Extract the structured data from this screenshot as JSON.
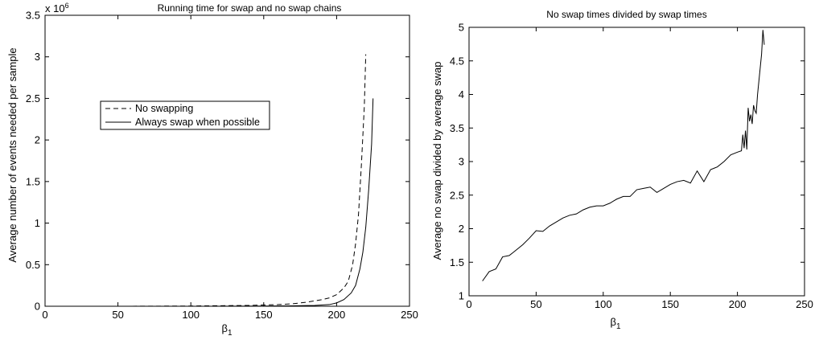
{
  "chart_data": [
    {
      "type": "line",
      "title": "Running time for swap and no swap chains",
      "xlabel_main": "β",
      "xlabel_sub": "1",
      "ylabel": "Average number of events needed per sample",
      "exponent_base": "x 10",
      "exponent_power": "6",
      "xlim": [
        0,
        250
      ],
      "ylim": [
        0,
        3.5
      ],
      "x_ticks": [
        "0",
        "50",
        "100",
        "150",
        "200",
        "250"
      ],
      "y_ticks": [
        "0",
        "0.5",
        "1",
        "1.5",
        "2",
        "2.5",
        "3",
        "3.5"
      ],
      "legend_position": "center-left",
      "series": [
        {
          "name": "No swapping",
          "style": "dashed",
          "color": "#000000",
          "x": [
            10,
            50,
            100,
            140,
            160,
            170,
            180,
            190,
            195,
            200,
            205,
            208,
            211,
            213,
            215,
            217,
            219,
            220
          ],
          "y": [
            0,
            0,
            0.003,
            0.01,
            0.02,
            0.03,
            0.05,
            0.08,
            0.1,
            0.14,
            0.22,
            0.3,
            0.5,
            0.75,
            1.1,
            1.7,
            2.4,
            3.03
          ]
        },
        {
          "name": "Always swap when possible",
          "style": "solid",
          "color": "#000000",
          "x": [
            10,
            50,
            100,
            150,
            170,
            185,
            195,
            200,
            205,
            210,
            213,
            216,
            218,
            220,
            222,
            224,
            225
          ],
          "y": [
            0,
            0,
            0,
            0.002,
            0.005,
            0.01,
            0.02,
            0.04,
            0.08,
            0.16,
            0.25,
            0.45,
            0.65,
            0.95,
            1.4,
            1.95,
            2.5
          ]
        }
      ]
    },
    {
      "type": "line",
      "title": "No swap times divided by swap times",
      "xlabel_main": "β",
      "xlabel_sub": "1",
      "ylabel": "Average no swap divided by average swap",
      "xlim": [
        0,
        250
      ],
      "ylim": [
        1,
        5
      ],
      "x_ticks": [
        "0",
        "50",
        "100",
        "150",
        "200",
        "250"
      ],
      "y_ticks": [
        "1",
        "1.5",
        "2",
        "2.5",
        "3",
        "3.5",
        "4",
        "4.5",
        "5"
      ],
      "series": [
        {
          "style": "solid",
          "color": "#000000",
          "x": [
            10,
            15,
            20,
            25,
            30,
            35,
            40,
            45,
            50,
            55,
            60,
            65,
            70,
            75,
            80,
            85,
            90,
            95,
            100,
            105,
            110,
            115,
            120,
            125,
            130,
            135,
            140,
            145,
            150,
            155,
            160,
            165,
            170,
            175,
            180,
            185,
            190,
            195,
            200,
            203,
            204,
            205,
            206,
            207,
            208,
            209,
            210,
            211,
            212,
            213,
            214,
            215,
            216,
            217,
            218,
            219,
            220
          ],
          "y": [
            1.22,
            1.36,
            1.4,
            1.58,
            1.6,
            1.68,
            1.76,
            1.86,
            1.97,
            1.96,
            2.04,
            2.1,
            2.16,
            2.2,
            2.22,
            2.28,
            2.32,
            2.34,
            2.34,
            2.38,
            2.44,
            2.48,
            2.48,
            2.58,
            2.6,
            2.62,
            2.54,
            2.6,
            2.66,
            2.7,
            2.72,
            2.68,
            2.86,
            2.7,
            2.88,
            2.92,
            3.0,
            3.1,
            3.14,
            3.16,
            3.4,
            3.2,
            3.46,
            3.18,
            3.8,
            3.6,
            3.7,
            3.56,
            3.84,
            3.76,
            3.72,
            4.0,
            4.2,
            4.4,
            4.6,
            4.96,
            4.74
          ]
        }
      ]
    }
  ]
}
